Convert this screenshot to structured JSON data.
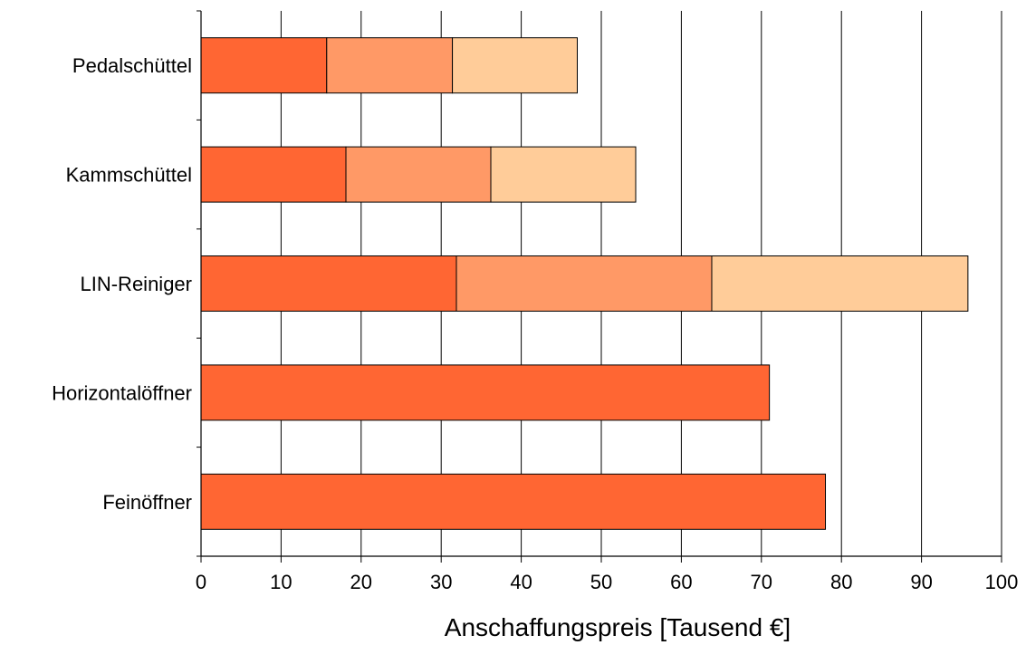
{
  "chart_data": {
    "type": "bar",
    "orientation": "horizontal",
    "stacked": true,
    "categories": [
      "Pedalschüttel",
      "Kammschüttel",
      "LIN-Reiniger",
      "Horizontalöffner",
      "Feinöffner"
    ],
    "series": [
      {
        "values": [
          15.7,
          18.1,
          31.9,
          71.0,
          78.0
        ],
        "color": "#ff6633"
      },
      {
        "values": [
          15.7,
          18.1,
          31.9,
          0,
          0
        ],
        "color": "#ff9966"
      },
      {
        "values": [
          15.6,
          18.1,
          32.0,
          0,
          0
        ],
        "color": "#ffcc99"
      }
    ],
    "x_ticks": [
      "0",
      "10",
      "20",
      "30",
      "40",
      "50",
      "60",
      "70",
      "80",
      "90",
      "100"
    ],
    "xlim": [
      0,
      100
    ],
    "xlabel": "Anschaffungspreis [Tausend €]",
    "ylabel": "",
    "title": "",
    "grid": "vertical",
    "legend": "none"
  }
}
